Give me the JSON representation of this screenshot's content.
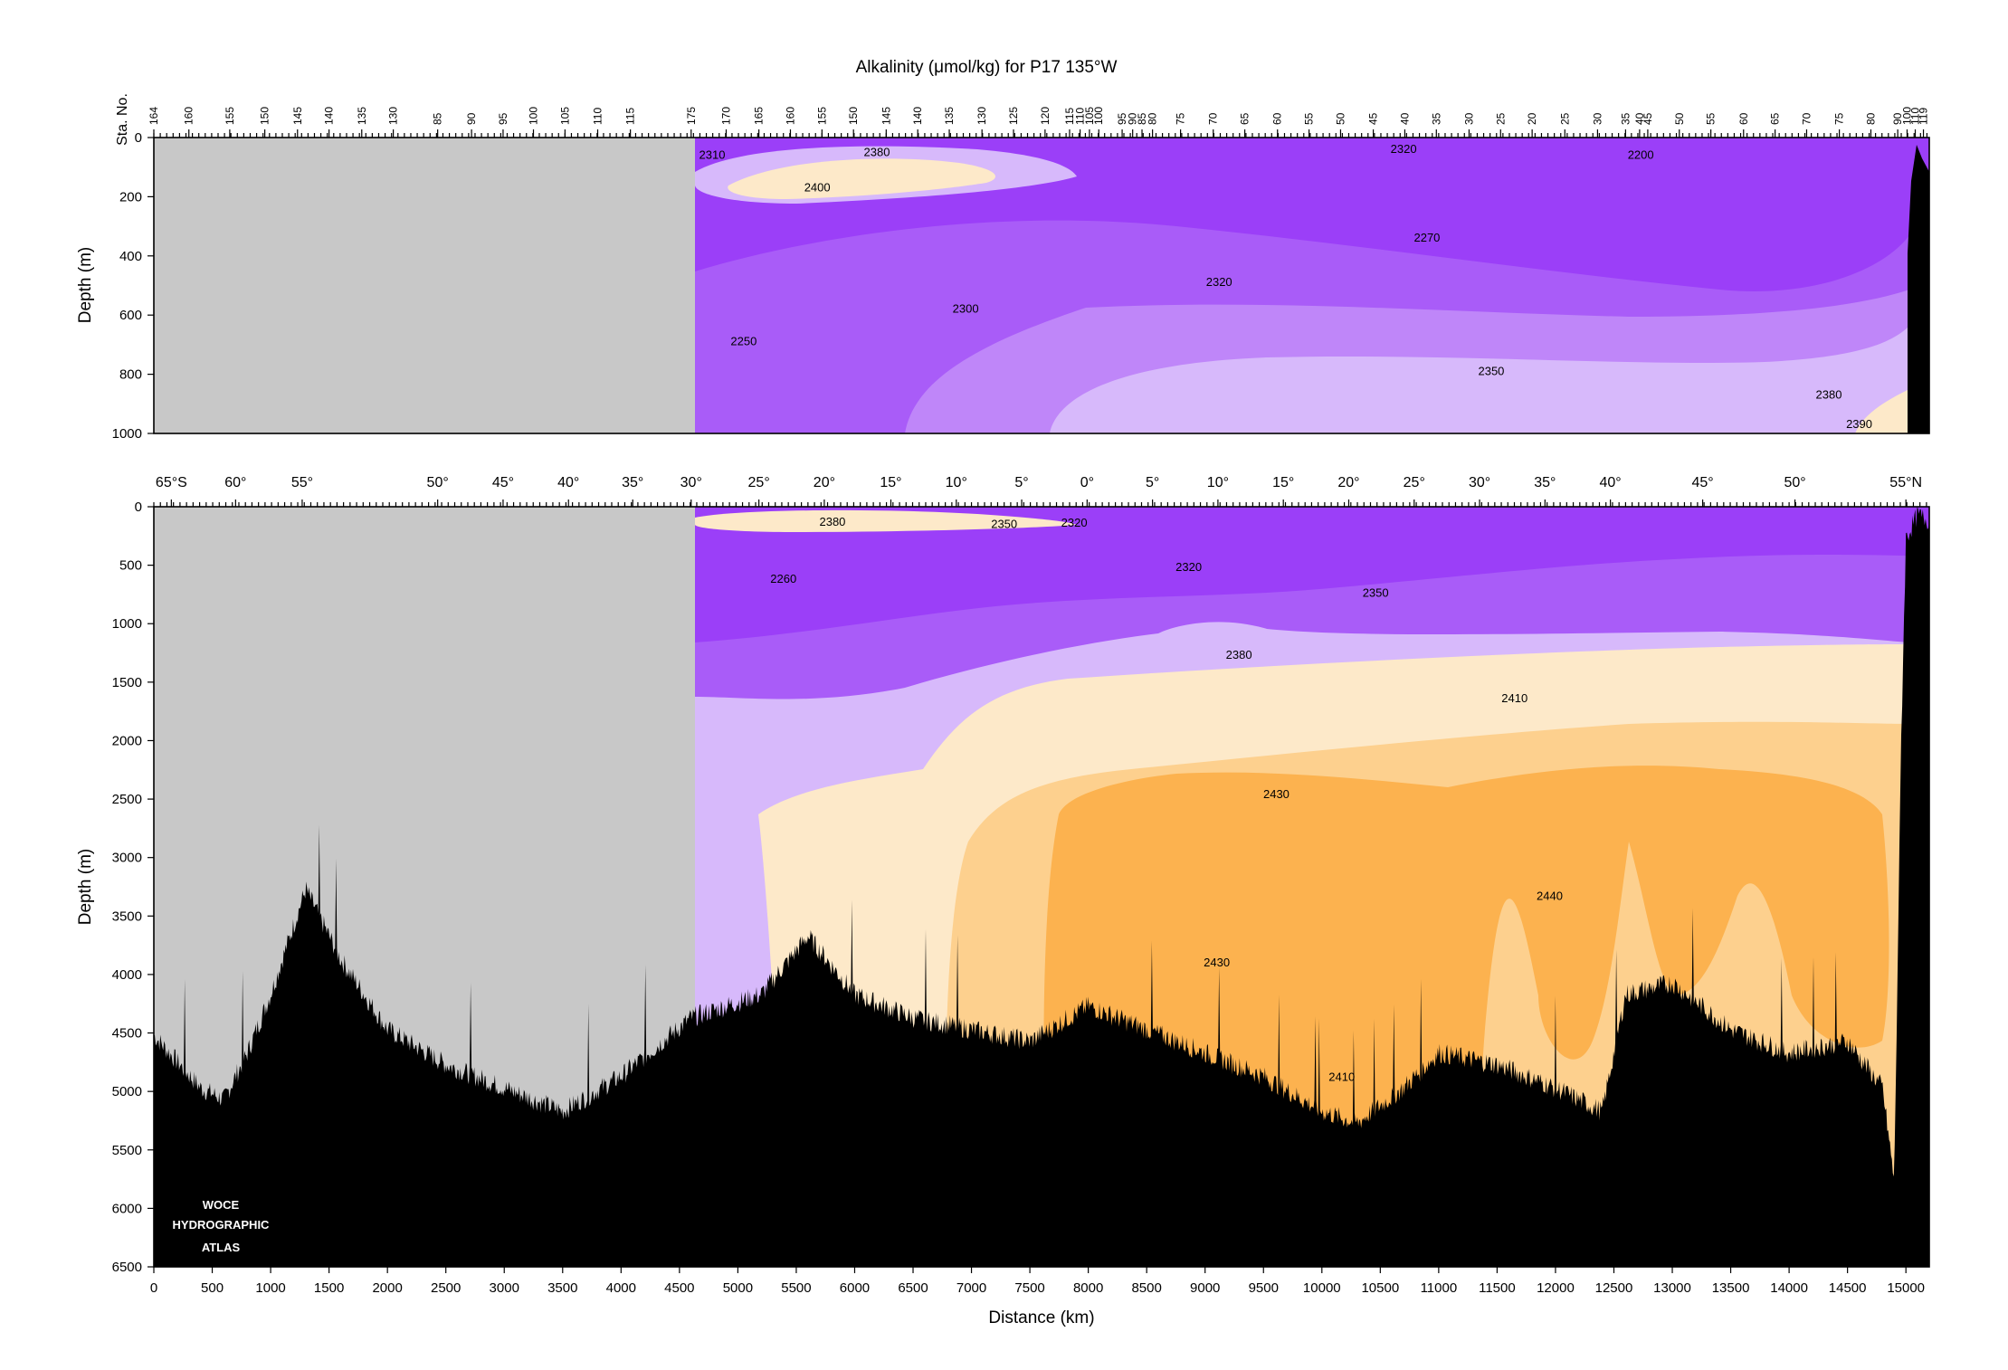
{
  "chart_data": {
    "type": "heatmap",
    "title": "Alkalinity (μmol/kg) for P17 135°W",
    "xlabel": "Distance (km)",
    "ylabel": "Depth (m)",
    "xlim": [
      0,
      15200
    ],
    "x_ticks": [
      0,
      500,
      1000,
      1500,
      2000,
      2500,
      3000,
      3500,
      4000,
      4500,
      5000,
      5500,
      6000,
      6500,
      7000,
      7500,
      8000,
      8500,
      9000,
      9500,
      10000,
      10500,
      11000,
      11500,
      12000,
      12500,
      13000,
      13500,
      14000,
      14500,
      15000
    ],
    "station_label": "Sta.\nNo.",
    "stations": [
      {
        "label": "164",
        "km": 0
      },
      {
        "label": "160",
        "km": 300
      },
      {
        "label": "155",
        "km": 650
      },
      {
        "label": "150",
        "km": 950
      },
      {
        "label": "145",
        "km": 1230
      },
      {
        "label": "140",
        "km": 1500
      },
      {
        "label": "135",
        "km": 1780
      },
      {
        "label": "130",
        "km": 2050
      },
      {
        "label": "85",
        "km": 2430
      },
      {
        "label": "90",
        "km": 2720
      },
      {
        "label": "95",
        "km": 2990
      },
      {
        "label": "100",
        "km": 3250
      },
      {
        "label": "105",
        "km": 3520
      },
      {
        "label": "110",
        "km": 3800
      },
      {
        "label": "115",
        "km": 4080
      },
      {
        "label": "175",
        "km": 4600
      },
      {
        "label": "170",
        "km": 4900
      },
      {
        "label": "165",
        "km": 5180
      },
      {
        "label": "160",
        "km": 5450
      },
      {
        "label": "155",
        "km": 5720
      },
      {
        "label": "150",
        "km": 5990
      },
      {
        "label": "145",
        "km": 6270
      },
      {
        "label": "140",
        "km": 6540
      },
      {
        "label": "135",
        "km": 6810
      },
      {
        "label": "130",
        "km": 7090
      },
      {
        "label": "125",
        "km": 7360
      },
      {
        "label": "120",
        "km": 7630
      },
      {
        "label": "115",
        "km": 7840
      },
      {
        "label": "110",
        "km": 7930
      },
      {
        "label": "105",
        "km": 8010
      },
      {
        "label": "100",
        "km": 8090
      },
      {
        "label": "95",
        "km": 8290
      },
      {
        "label": "90",
        "km": 8380
      },
      {
        "label": "85",
        "km": 8460
      },
      {
        "label": "80",
        "km": 8550
      },
      {
        "label": "75",
        "km": 8790
      },
      {
        "label": "70",
        "km": 9070
      },
      {
        "label": "65",
        "km": 9340
      },
      {
        "label": "60",
        "km": 9620
      },
      {
        "label": "55",
        "km": 9890
      },
      {
        "label": "50",
        "km": 10160
      },
      {
        "label": "45",
        "km": 10440
      },
      {
        "label": "40",
        "km": 10710
      },
      {
        "label": "35",
        "km": 10980
      },
      {
        "label": "30",
        "km": 11260
      },
      {
        "label": "25",
        "km": 11530
      },
      {
        "label": "20",
        "km": 11800
      },
      {
        "label": "25",
        "km": 12080
      },
      {
        "label": "30",
        "km": 12360
      },
      {
        "label": "35",
        "km": 12600
      },
      {
        "label": "40",
        "km": 12720
      },
      {
        "label": "45",
        "km": 12790
      },
      {
        "label": "50",
        "km": 13060
      },
      {
        "label": "55",
        "km": 13330
      },
      {
        "label": "60",
        "km": 13610
      },
      {
        "label": "65",
        "km": 13880
      },
      {
        "label": "70",
        "km": 14150
      },
      {
        "label": "75",
        "km": 14430
      },
      {
        "label": "80",
        "km": 14700
      },
      {
        "label": "90",
        "km": 14930
      },
      {
        "label": "100",
        "km": 15010
      },
      {
        "label": "110",
        "km": 15080
      },
      {
        "label": "119",
        "km": 15150
      }
    ],
    "latitudes": [
      {
        "label": "65°S",
        "km": 150
      },
      {
        "label": "60°",
        "km": 700
      },
      {
        "label": "55°",
        "km": 1270
      },
      {
        "label": "50°",
        "km": 2430
      },
      {
        "label": "45°",
        "km": 2990
      },
      {
        "label": "40°",
        "km": 3550
      },
      {
        "label": "35°",
        "km": 4100
      },
      {
        "label": "30°",
        "km": 4600
      },
      {
        "label": "25°",
        "km": 5180
      },
      {
        "label": "20°",
        "km": 5740
      },
      {
        "label": "15°",
        "km": 6310
      },
      {
        "label": "10°",
        "km": 6870
      },
      {
        "label": "5°",
        "km": 7430
      },
      {
        "label": "0°",
        "km": 7990
      },
      {
        "label": "5°",
        "km": 8550
      },
      {
        "label": "10°",
        "km": 9110
      },
      {
        "label": "15°",
        "km": 9670
      },
      {
        "label": "20°",
        "km": 10230
      },
      {
        "label": "25°",
        "km": 10790
      },
      {
        "label": "30°",
        "km": 11350
      },
      {
        "label": "35°",
        "km": 11910
      },
      {
        "label": "40°",
        "km": 12470
      },
      {
        "label": "45°",
        "km": 13260
      },
      {
        "label": "50°",
        "km": 14050
      },
      {
        "label": "55°N",
        "km": 15000
      }
    ],
    "panels": [
      {
        "name": "upper",
        "ylim": [
          0,
          1000
        ],
        "y_ticks": [
          0,
          200,
          400,
          600,
          800,
          1000
        ],
        "contour_labels": [
          {
            "value": "2310",
            "x": 4780,
            "y": 60
          },
          {
            "value": "2380",
            "x": 6190,
            "y": 50
          },
          {
            "value": "2400",
            "x": 5680,
            "y": 170
          },
          {
            "value": "2320",
            "x": 10700,
            "y": 40
          },
          {
            "value": "2200",
            "x": 12730,
            "y": 60
          },
          {
            "value": "2270",
            "x": 10900,
            "y": 340
          },
          {
            "value": "2320",
            "x": 9120,
            "y": 490
          },
          {
            "value": "2300",
            "x": 6950,
            "y": 580
          },
          {
            "value": "2250",
            "x": 5050,
            "y": 690
          },
          {
            "value": "2350",
            "x": 11450,
            "y": 790
          },
          {
            "value": "2380",
            "x": 14340,
            "y": 870
          },
          {
            "value": "2390",
            "x": 14600,
            "y": 970
          }
        ]
      },
      {
        "name": "lower",
        "ylim": [
          0,
          6500
        ],
        "y_ticks": [
          0,
          500,
          1000,
          1500,
          2000,
          2500,
          3000,
          3500,
          4000,
          4500,
          5000,
          5500,
          6000,
          6500
        ],
        "contour_labels": [
          {
            "value": "2380",
            "x": 5810,
            "y": 130
          },
          {
            "value": "2350",
            "x": 7280,
            "y": 150
          },
          {
            "value": "2320",
            "x": 7880,
            "y": 140
          },
          {
            "value": "2260",
            "x": 5390,
            "y": 620
          },
          {
            "value": "2320",
            "x": 8860,
            "y": 520
          },
          {
            "value": "2350",
            "x": 10460,
            "y": 740
          },
          {
            "value": "2380",
            "x": 9290,
            "y": 1270
          },
          {
            "value": "2410",
            "x": 11650,
            "y": 1640
          },
          {
            "value": "2430",
            "x": 9610,
            "y": 2460
          },
          {
            "value": "2440",
            "x": 11950,
            "y": 3330
          },
          {
            "value": "2430",
            "x": 9100,
            "y": 3900
          },
          {
            "value": "2410",
            "x": 10170,
            "y": 4880
          }
        ]
      }
    ],
    "colorbands": [
      {
        "range": "< 2300",
        "color": "#9b3ff8"
      },
      {
        "range": "2300-2320",
        "color": "#a95cf8"
      },
      {
        "range": "2320-2340",
        "color": "#bf86f9"
      },
      {
        "range": "2340-2370",
        "color": "#d7b9fb"
      },
      {
        "range": "2370-2400",
        "color": "#fde9c9"
      },
      {
        "range": "2400-2425",
        "color": "#fdd08e"
      },
      {
        "range": "2425-2445",
        "color": "#fcb24f"
      }
    ],
    "no_data_color": "#c8c8c8",
    "bathymetry_color": "#000000",
    "grid": false,
    "legend": "none"
  },
  "watermark": [
    "WOCE",
    "HYDROGRAPHIC",
    "ATLAS"
  ]
}
